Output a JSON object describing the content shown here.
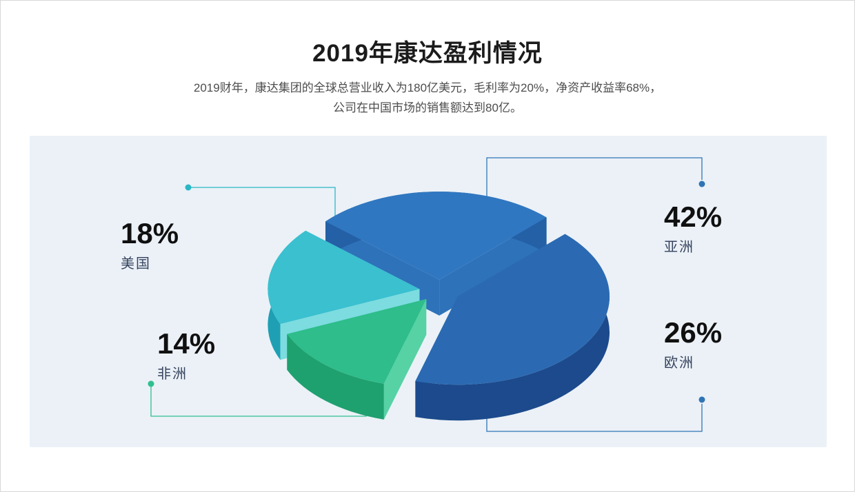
{
  "slide": {
    "title": "2019年康达盈利情况",
    "subtitle_line1": "2019财年，康达集团的全球总营业收入为180亿美元，毛利率为20%，净资产收益率68%，",
    "subtitle_line2": "公司在中国市场的销售额达到80亿。"
  },
  "chart_data": {
    "type": "pie",
    "style": "3d-exploded",
    "title": "2019年康达盈利情况",
    "unit": "percent",
    "start_angle": -45,
    "legend_position": "callouts",
    "slices": [
      {
        "label": "亚洲",
        "value": 42,
        "color": "#2b6ab2",
        "side_color": "#1c4a8c",
        "cut_color": "#2a67ac"
      },
      {
        "label": "非洲",
        "value": 14,
        "color": "#2ebd8b",
        "side_color": "#1fa06f",
        "cut_color": "#57d2a4"
      },
      {
        "label": "美国",
        "value": 18,
        "color": "#3ac0cf",
        "side_color": "#1f9fb3",
        "cut_color": "#7cdce0"
      },
      {
        "label": "欧洲",
        "value": 26,
        "color": "#3077c1",
        "side_color": "#2460a5",
        "cut_color": "#2e72ba"
      }
    ]
  },
  "callouts": [
    {
      "percent": "42%",
      "label": "亚洲",
      "line_color": "#2f75b5"
    },
    {
      "percent": "26%",
      "label": "欧洲",
      "line_color": "#2f75b5"
    },
    {
      "percent": "18%",
      "label": "美国",
      "line_color": "#29b7c6"
    },
    {
      "percent": "14%",
      "label": "非洲",
      "line_color": "#2fbf8e"
    }
  ],
  "colors": {
    "panel_background": "#ebf1f7",
    "title": "#1b1b1b",
    "subtitle": "#4d4d4d",
    "percent_text": "#101010",
    "region_text": "#35435e"
  }
}
